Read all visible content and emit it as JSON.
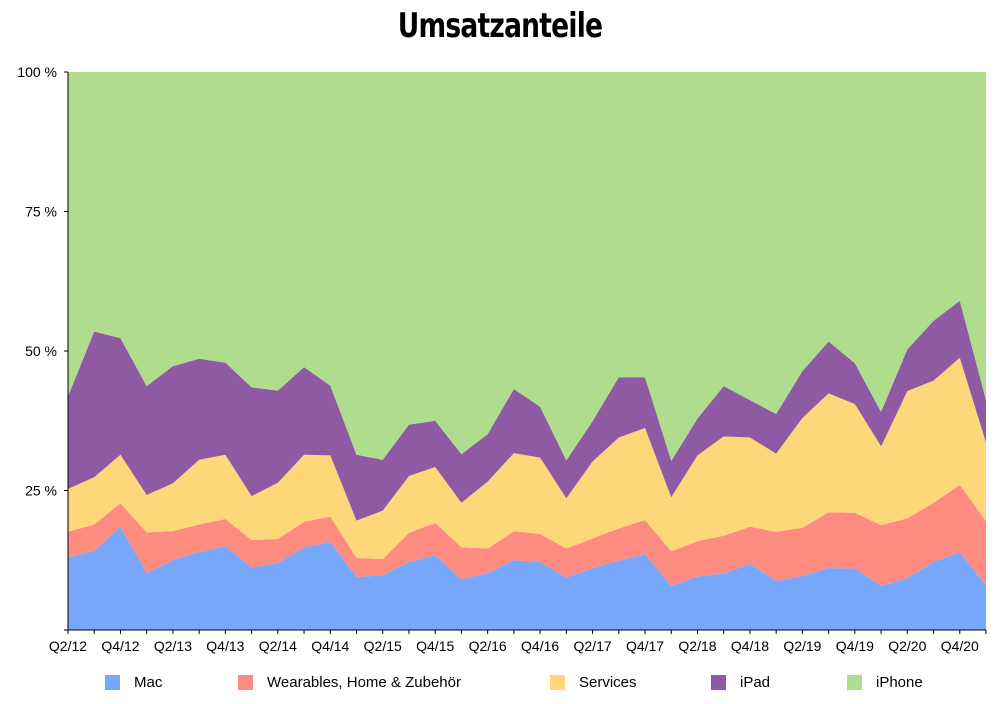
{
  "chart_data": {
    "type": "area",
    "stacked": true,
    "title": "Umsatzanteile",
    "xlabel": "",
    "ylabel": "",
    "ylim": [
      0,
      100
    ],
    "yticks": [
      {
        "value": 0,
        "label": ""
      },
      {
        "value": 25,
        "label": "25 %"
      },
      {
        "value": 50,
        "label": "50 %"
      },
      {
        "value": 75,
        "label": "75 %"
      },
      {
        "value": 100,
        "label": "100 %"
      }
    ],
    "xtick_labels": [
      "Q2/12",
      "Q4/12",
      "Q2/13",
      "Q4/13",
      "Q2/14",
      "Q4/14",
      "Q2/15",
      "Q4/15",
      "Q2/16",
      "Q4/16",
      "Q2/17",
      "Q4/17",
      "Q2/18",
      "Q4/18",
      "Q2/19",
      "Q4/19",
      "Q2/20",
      "Q4/20"
    ],
    "x": [
      "Q2/12",
      "Q3/12",
      "Q4/12",
      "Q1/13",
      "Q2/13",
      "Q3/13",
      "Q4/13",
      "Q1/14",
      "Q2/14",
      "Q3/14",
      "Q4/14",
      "Q1/15",
      "Q2/15",
      "Q3/15",
      "Q4/15",
      "Q1/16",
      "Q2/16",
      "Q3/16",
      "Q4/16",
      "Q1/17",
      "Q2/17",
      "Q3/17",
      "Q4/17",
      "Q1/18",
      "Q2/18",
      "Q3/18",
      "Q4/18",
      "Q1/19",
      "Q2/19",
      "Q3/19",
      "Q4/19",
      "Q1/20",
      "Q2/20",
      "Q3/20",
      "Q4/20",
      "Q1/21"
    ],
    "grid": false,
    "legend_position": "bottom",
    "series": [
      {
        "name": "Mac",
        "color": "#78a8fc",
        "values": [
          13,
          14.2,
          18.5,
          10.2,
          12.5,
          14,
          15,
          11.2,
          12,
          14.8,
          15.8,
          9.5,
          9.8,
          12.2,
          13.4,
          9.1,
          10.2,
          12.5,
          12.2,
          9.4,
          11.1,
          12.4,
          13.6,
          7.9,
          9.6,
          10.1,
          11.9,
          8.8,
          9.7,
          11.1,
          11,
          7.9,
          9.3,
          12.2,
          14,
          8
        ]
      },
      {
        "name": "Wearables, Home & Zubehör",
        "color": "#fd8b7f",
        "values": [
          4.6,
          4.7,
          4.2,
          7.3,
          5.2,
          4.9,
          4.9,
          4.9,
          4.3,
          4.6,
          4.5,
          3.4,
          2.9,
          5.2,
          5.8,
          5.7,
          4.4,
          5.2,
          5,
          5.2,
          5.3,
          5.8,
          6.1,
          6.2,
          6.3,
          6.8,
          6.6,
          8.8,
          8.6,
          10,
          10,
          10.9,
          10.7,
          10.6,
          12,
          11.5
        ]
      },
      {
        "name": "Services",
        "color": "#fdd77a",
        "values": [
          7.7,
          8.5,
          8.7,
          6.7,
          8.6,
          11.6,
          11.5,
          7.9,
          10.1,
          12,
          11,
          6.7,
          8.7,
          10.2,
          10,
          8,
          12,
          14,
          13.7,
          9,
          13.8,
          16.3,
          16.5,
          9.7,
          15.4,
          17.8,
          16,
          14,
          19.7,
          21.3,
          19.5,
          14.1,
          22.8,
          21.9,
          22.8,
          14.1
        ]
      },
      {
        "name": "iPad",
        "color": "#8e5aa3",
        "values": [
          16.6,
          26.1,
          20.9,
          19.5,
          21,
          18.1,
          16.5,
          19.5,
          16.5,
          15.7,
          12.5,
          11.8,
          9.1,
          9.2,
          8.3,
          8.7,
          8.5,
          11.5,
          9.1,
          6.8,
          7.2,
          10.8,
          9.1,
          6.5,
          6.6,
          9,
          6.7,
          7.1,
          8.4,
          9.3,
          7.3,
          6.2,
          7.5,
          10.7,
          10.2,
          7.6
        ]
      },
      {
        "name": "iPhone",
        "color": "#b0dc8e",
        "values": [
          58.1,
          46.5,
          47.7,
          56.3,
          52.7,
          51.4,
          52.1,
          56.5,
          57.1,
          52.9,
          56.2,
          68.6,
          69.5,
          63.2,
          62.5,
          68.5,
          64.9,
          56.8,
          60,
          69.6,
          62.6,
          54.7,
          54.7,
          69.7,
          62.1,
          56.3,
          58.8,
          61.3,
          53.6,
          48.3,
          52.2,
          60.9,
          49.7,
          44.6,
          41,
          58.8
        ]
      }
    ]
  }
}
